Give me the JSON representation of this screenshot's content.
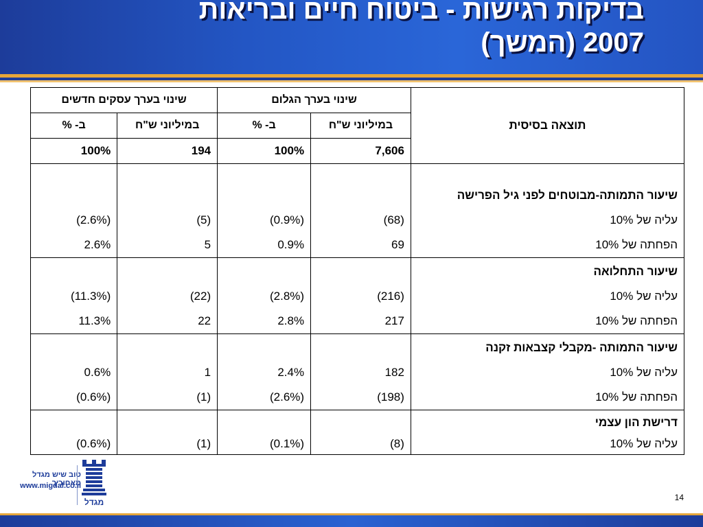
{
  "slide": {
    "title_line1": "בדיקות רגישות - ביטוח חיים ובריאות",
    "title_line2": "2007 (המשך)",
    "page_number": "14"
  },
  "table": {
    "group_headers": {
      "embedded_value": "שינוי בערך הגלום",
      "new_business_value": "שינוי בערך עסקים חדשים"
    },
    "sub_headers": {
      "millions": "במיליוני ש\"ח",
      "percent": "ב- %"
    },
    "base": {
      "label": "תוצאה בסיסית",
      "ev_millions": "7,606",
      "ev_percent": "100%",
      "nb_millions": "194",
      "nb_percent": "100%"
    },
    "sections": [
      {
        "title": "שיעור התמותה-מבוטחים לפני גיל הפרישה",
        "rows": [
          {
            "label": "עליה של 10%",
            "ev_millions": "(68)",
            "ev_percent": "(0.9%)",
            "nb_millions": "(5)",
            "nb_percent": "(2.6%)"
          },
          {
            "label": "הפחתה של 10%",
            "ev_millions": "69",
            "ev_percent": "0.9%",
            "nb_millions": "5",
            "nb_percent": "2.6%"
          }
        ]
      },
      {
        "title": "שיעור התחלואה",
        "rows": [
          {
            "label": "עליה של 10%",
            "ev_millions": "(216)",
            "ev_percent": "(2.8%)",
            "nb_millions": "(22)",
            "nb_percent": "(11.3%)"
          },
          {
            "label": "הפחתה של 10%",
            "ev_millions": "217",
            "ev_percent": "2.8%",
            "nb_millions": "22",
            "nb_percent": "11.3%"
          }
        ]
      },
      {
        "title": "שיעור התמותה -מקבלי קצבאות זקנה",
        "rows": [
          {
            "label": "עליה של 10%",
            "ev_millions": "182",
            "ev_percent": "2.4%",
            "nb_millions": "1",
            "nb_percent": "0.6%"
          },
          {
            "label": "הפחתה של 10%",
            "ev_millions": "(198)",
            "ev_percent": "(2.6%)",
            "nb_millions": "(1)",
            "nb_percent": "(0.6%)"
          }
        ]
      },
      {
        "title": "דרישת הון עצמי",
        "rows": [
          {
            "label": "עליה של 10%",
            "ev_millions": "(8)",
            "ev_percent": "(0.1%)",
            "nb_millions": "(1)",
            "nb_percent": "(0.6%)"
          }
        ]
      }
    ]
  },
  "footer": {
    "tagline": "טוב שיש מגדל מאחוריך",
    "url": "www.migdal.co.il",
    "logo_text": "מגדל"
  },
  "colors": {
    "brand_blue": "#1d3c9a",
    "accent_gold": "#e6a63a"
  },
  "icons": {
    "logo": "migdal-tower-logo"
  }
}
